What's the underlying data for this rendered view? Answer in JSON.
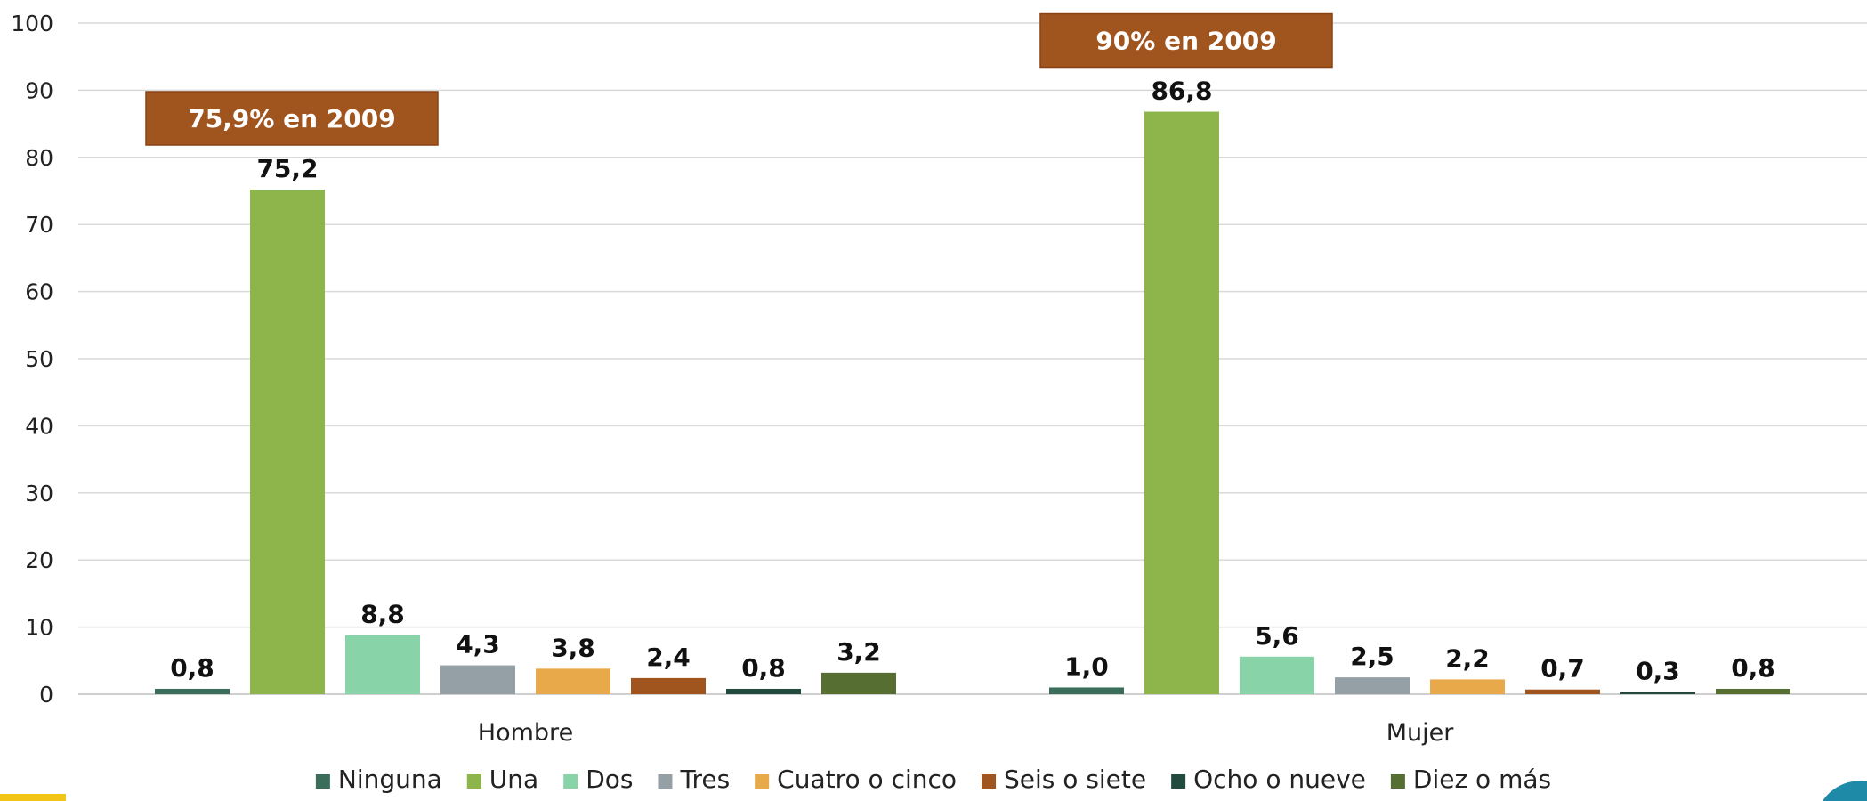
{
  "chart_data": {
    "type": "bar",
    "categories": [
      "Hombre",
      "Mujer"
    ],
    "series": [
      {
        "name": "Ninguna",
        "color": "#3a6e5a",
        "values": [
          0.8,
          1.0
        ]
      },
      {
        "name": "Una",
        "color": "#8db54b",
        "values": [
          75.2,
          86.8
        ]
      },
      {
        "name": "Dos",
        "color": "#88d4a8",
        "values": [
          8.8,
          5.6
        ]
      },
      {
        "name": "Tres",
        "color": "#959fa6",
        "values": [
          4.3,
          2.5
        ]
      },
      {
        "name": "Cuatro o cinco",
        "color": "#e8a94a",
        "values": [
          3.8,
          2.2
        ]
      },
      {
        "name": "Seis o siete",
        "color": "#a0541e",
        "values": [
          2.4,
          0.7
        ]
      },
      {
        "name": "Ocho o nueve",
        "color": "#234a3e",
        "values": [
          0.8,
          0.3
        ]
      },
      {
        "name": "Diez o más",
        "color": "#566e31",
        "values": [
          3.2,
          0.8
        ]
      }
    ],
    "data_labels": [
      [
        "0,8",
        "75,2",
        "8,8",
        "4,3",
        "3,8",
        "2,4",
        "0,8",
        "3,2"
      ],
      [
        "1,0",
        "86,8",
        "5,6",
        "2,5",
        "2,2",
        "0,7",
        "0,3",
        "0,8"
      ]
    ],
    "y_ticks": [
      "0",
      "10",
      "20",
      "30",
      "40",
      "50",
      "60",
      "70",
      "80",
      "90",
      "100"
    ],
    "ylim": [
      0,
      100
    ],
    "grid": true,
    "legend_position": "bottom",
    "annotations": [
      {
        "text": "75,9% en 2009",
        "category": "Hombre",
        "color": "#a0541e"
      },
      {
        "text": "90% en 2009",
        "category": "Mujer",
        "color": "#a0541e"
      }
    ]
  }
}
